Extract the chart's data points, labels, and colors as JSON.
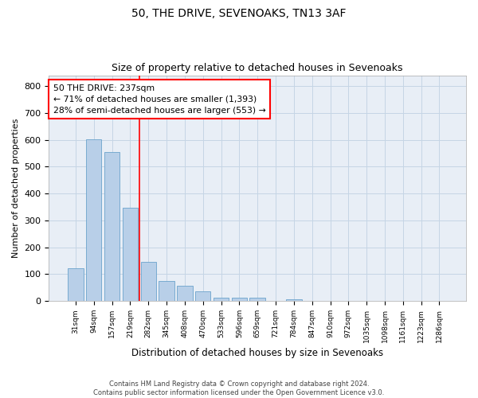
{
  "title": "50, THE DRIVE, SEVENOAKS, TN13 3AF",
  "subtitle": "Size of property relative to detached houses in Sevenoaks",
  "xlabel": "Distribution of detached houses by size in Sevenoaks",
  "ylabel": "Number of detached properties",
  "categories": [
    "31sqm",
    "94sqm",
    "157sqm",
    "219sqm",
    "282sqm",
    "345sqm",
    "408sqm",
    "470sqm",
    "533sqm",
    "596sqm",
    "659sqm",
    "721sqm",
    "784sqm",
    "847sqm",
    "910sqm",
    "972sqm",
    "1035sqm",
    "1098sqm",
    "1161sqm",
    "1223sqm",
    "1286sqm"
  ],
  "values": [
    122,
    601,
    553,
    347,
    147,
    75,
    57,
    35,
    13,
    12,
    12,
    0,
    7,
    0,
    0,
    0,
    0,
    0,
    0,
    0,
    0
  ],
  "bar_color": "#b8cfe8",
  "bar_edge_color": "#6ba3cc",
  "grid_color": "#c5d5e5",
  "bg_color": "#e8eef6",
  "vline_color": "red",
  "vline_x_index": 3.5,
  "annotation_text": "50 THE DRIVE: 237sqm\n← 71% of detached houses are smaller (1,393)\n28% of semi-detached houses are larger (553) →",
  "annotation_box_color": "white",
  "annotation_box_edge": "red",
  "footer": "Contains HM Land Registry data © Crown copyright and database right 2024.\nContains public sector information licensed under the Open Government Licence v3.0.",
  "ylim": [
    0,
    840
  ],
  "yticks": [
    0,
    100,
    200,
    300,
    400,
    500,
    600,
    700,
    800
  ],
  "title_fontsize": 10,
  "subtitle_fontsize": 9
}
